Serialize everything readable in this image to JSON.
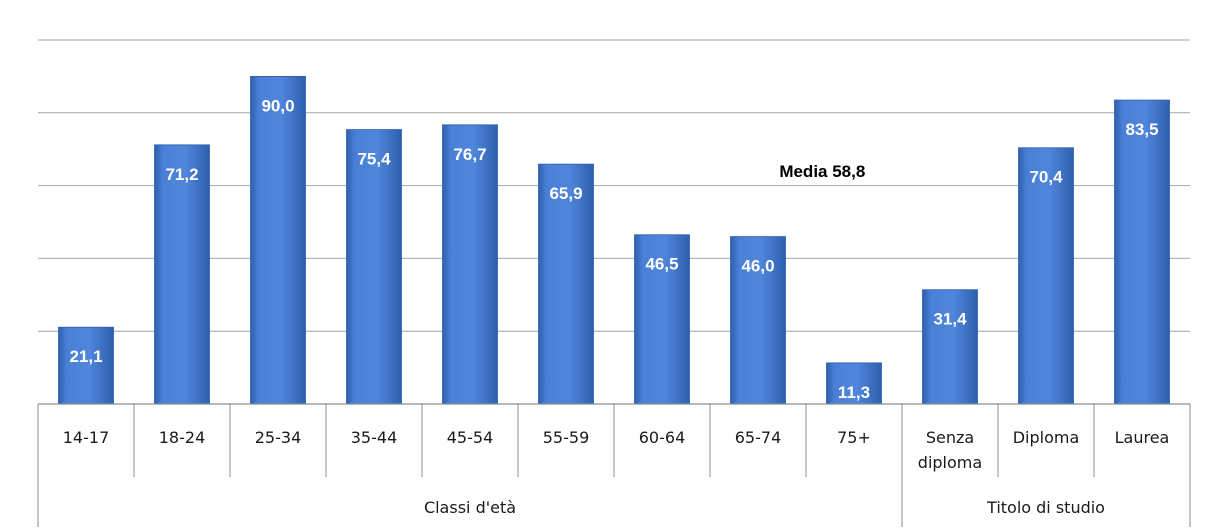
{
  "chart_data": {
    "type": "bar",
    "categories": [
      "14-17",
      "18-24",
      "25-34",
      "35-44",
      "45-54",
      "55-59",
      "60-64",
      "65-74",
      "75+",
      "Senza diploma",
      "Diploma",
      "Laurea"
    ],
    "category_labels": [
      [
        "14-17"
      ],
      [
        "18-24"
      ],
      [
        "25-34"
      ],
      [
        "35-44"
      ],
      [
        "45-54"
      ],
      [
        "55-59"
      ],
      [
        "60-64"
      ],
      [
        "65-74"
      ],
      [
        "75+"
      ],
      [
        "Senza",
        "diploma"
      ],
      [
        "Diploma"
      ],
      [
        "Laurea"
      ]
    ],
    "values": [
      21.1,
      71.2,
      90.0,
      75.4,
      76.7,
      65.9,
      46.5,
      46.0,
      11.3,
      31.4,
      70.4,
      83.5
    ],
    "value_labels": [
      "21,1",
      "71,2",
      "90,0",
      "75,4",
      "76,7",
      "65,9",
      "46,5",
      "46,0",
      "11,3",
      "31,4",
      "70,4",
      "83,5"
    ],
    "groups": [
      {
        "label": "Classi d'età",
        "count": 9
      },
      {
        "label": "Titolo di studio",
        "count": 3
      }
    ],
    "average": {
      "value": 58.8,
      "label": "Media 58,8"
    },
    "ylim": [
      0,
      100
    ],
    "y_gridline_step": 20,
    "y_tick_labels_shown": false,
    "grid": true,
    "legend": "none",
    "title": "",
    "xlabel": "",
    "ylabel": ""
  },
  "colors": {
    "bar": "#4a7fd6",
    "bar_dark": "#2f5fae",
    "average_line": "#7f0d12",
    "grid": "#a6a6a6",
    "label_value": "#ffffff"
  }
}
